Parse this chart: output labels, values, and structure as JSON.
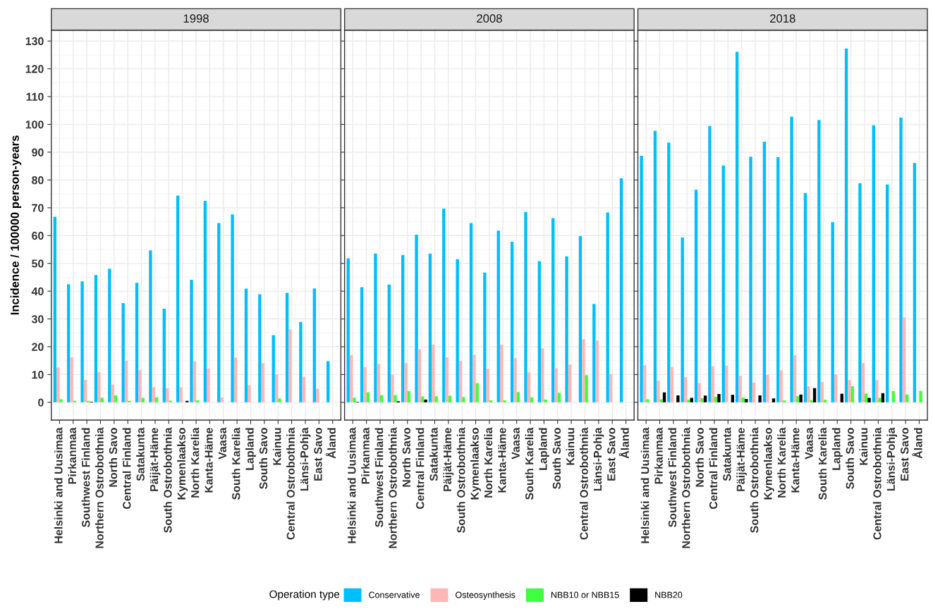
{
  "chart_data": [
    {
      "type": "bar",
      "title": "1998",
      "ylabel": "Incidence / 100000 person-years",
      "legend_title": "Operation type",
      "legend": "bottom",
      "grid": true,
      "ylim": [
        -6.4,
        133.9
      ],
      "yticks": [
        0,
        10,
        20,
        30,
        40,
        50,
        60,
        70,
        80,
        90,
        100,
        110,
        120,
        130
      ],
      "categories": [
        "Helsinki and Uusimaa",
        "Pirkanmaa",
        "Southwest Finland",
        "Northern Ostrobothnia",
        "North Savo",
        "Central Finland",
        "Satakunta",
        "Päijät-Häme",
        "South Ostrobothnia",
        "Kymenlaakso",
        "North Karelia",
        "Kanta-Häme",
        "Vaasa",
        "South Karelia",
        "Lapland",
        "South Savo",
        "Kainuu",
        "Central Ostrobothnia",
        "Länsi-Pohja",
        "East Savo",
        "Åland"
      ],
      "series": [
        {
          "name": "Conservative",
          "color": "#00bfff",
          "values": [
            66.8,
            42.5,
            43.5,
            45.8,
            48.1,
            35.7,
            43.0,
            54.7,
            33.7,
            74.4,
            44.1,
            72.5,
            64.5,
            67.6,
            40.9,
            38.9,
            24.2,
            39.4,
            28.9,
            41.0,
            14.8
          ]
        },
        {
          "name": "Osteosynthesis",
          "color": "#ffb6b6",
          "values": [
            12.6,
            16.2,
            8.1,
            10.9,
            6.4,
            15.0,
            11.7,
            5.5,
            5.1,
            5.5,
            14.8,
            12.2,
            1.8,
            16.1,
            6.2,
            14.1,
            10.1,
            26.2,
            9.2,
            4.9,
            null
          ]
        },
        {
          "name": "NBB10 or NBB15",
          "color": "#40ff40",
          "values": [
            1.1,
            0.5,
            0.5,
            1.7,
            2.5,
            0.5,
            1.6,
            1.8,
            0.6,
            null,
            0.7,
            null,
            null,
            null,
            null,
            null,
            1.4,
            null,
            null,
            null,
            null
          ]
        },
        {
          "name": "NBB20",
          "color": "#000000",
          "values": [
            null,
            null,
            0.2,
            null,
            null,
            null,
            null,
            null,
            null,
            0.5,
            null,
            null,
            null,
            null,
            null,
            null,
            null,
            null,
            null,
            null,
            null
          ]
        }
      ]
    },
    {
      "type": "bar",
      "title": "2008",
      "grid": true,
      "tick_labels": "x",
      "ylim": [
        -6.4,
        133.9
      ],
      "yticks": [
        0,
        10,
        20,
        30,
        40,
        50,
        60,
        70,
        80,
        90,
        100,
        110,
        120,
        130
      ],
      "categories": [
        "Helsinki and Uusimaa",
        "Pirkanmaa",
        "Southwest Finland",
        "Northern Ostrobothnia",
        "North Savo",
        "Central Finland",
        "Satakunta",
        "Päijät-Häme",
        "South Ostrobothnia",
        "Kymenlaakso",
        "North Karelia",
        "Kanta-Häme",
        "Vaasa",
        "South Karelia",
        "Lapland",
        "South Savo",
        "Kainuu",
        "Central Ostrobothnia",
        "Länsi-Pohja",
        "East Savo",
        "Åland"
      ],
      "series": [
        {
          "color": "#00bfff",
          "values": [
            51.8,
            41.4,
            53.5,
            42.4,
            53.0,
            60.3,
            53.5,
            69.7,
            51.5,
            64.5,
            46.7,
            61.8,
            57.8,
            68.5,
            50.8,
            66.3,
            52.5,
            59.8,
            35.4,
            68.3,
            80.6
          ]
        },
        {
          "color": "#ffb6b6",
          "values": [
            17.0,
            12.7,
            13.8,
            10.0,
            14.2,
            19.1,
            20.8,
            16.2,
            14.9,
            17.1,
            12.1,
            20.8,
            15.9,
            10.8,
            19.4,
            12.3,
            13.6,
            22.7,
            22.3,
            10.2,
            null
          ]
        },
        {
          "color": "#40ff40",
          "values": [
            1.7,
            3.6,
            2.6,
            2.6,
            4.0,
            2.1,
            2.2,
            2.4,
            1.9,
            6.9,
            0.7,
            0.7,
            3.7,
            1.8,
            1.0,
            3.4,
            null,
            9.8,
            null,
            null,
            null
          ]
        },
        {
          "color": "#000000",
          "values": [
            0.2,
            null,
            null,
            0.4,
            null,
            1.0,
            null,
            null,
            null,
            null,
            null,
            null,
            null,
            null,
            null,
            null,
            null,
            null,
            null,
            null,
            null
          ]
        }
      ]
    },
    {
      "type": "bar",
      "title": "2018",
      "grid": true,
      "tick_labels": "x",
      "ylim": [
        -6.4,
        133.9
      ],
      "yticks": [
        0,
        10,
        20,
        30,
        40,
        50,
        60,
        70,
        80,
        90,
        100,
        110,
        120,
        130
      ],
      "categories": [
        "Helsinki and Uusimaa",
        "Pirkanmaa",
        "Southwest Finland",
        "Northern Ostrobothnia",
        "North Savo",
        "Central Finland",
        "Satakunta",
        "Päijät-Häme",
        "South Ostrobothnia",
        "Kymenlaakso",
        "North Karelia",
        "Kanta-Häme",
        "Vaasa",
        "South Karelia",
        "Lapland",
        "South Savo",
        "Kainuu",
        "Central Ostrobothnia",
        "Länsi-Pohja",
        "East Savo",
        "Åland"
      ],
      "series": [
        {
          "color": "#00bfff",
          "values": [
            88.7,
            97.7,
            93.5,
            59.3,
            76.5,
            99.4,
            85.2,
            126.1,
            88.4,
            93.8,
            88.2,
            102.8,
            75.3,
            101.6,
            64.8,
            127.3,
            78.8,
            99.7,
            78.4,
            102.5,
            86.1
          ]
        },
        {
          "color": "#ffb6b6",
          "values": [
            13.4,
            7.8,
            12.7,
            9.1,
            6.9,
            13.0,
            13.2,
            9.6,
            7.1,
            9.9,
            11.5,
            17.0,
            5.8,
            7.3,
            10.1,
            8.0,
            14.2,
            8.0,
            null,
            30.6,
            null
          ]
        },
        {
          "color": "#40ff40",
          "values": [
            1.1,
            1.1,
            null,
            0.9,
            1.5,
            2.0,
            null,
            1.7,
            null,
            null,
            0.7,
            2.2,
            0.8,
            0.9,
            null,
            5.8,
            3.2,
            1.6,
            4.0,
            2.8,
            4.1
          ]
        },
        {
          "color": "#000000",
          "values": [
            null,
            3.6,
            2.5,
            1.6,
            2.4,
            3.0,
            2.7,
            1.2,
            2.5,
            1.4,
            null,
            2.8,
            5.1,
            null,
            3.1,
            null,
            1.6,
            3.3,
            null,
            null,
            null
          ]
        }
      ]
    }
  ]
}
